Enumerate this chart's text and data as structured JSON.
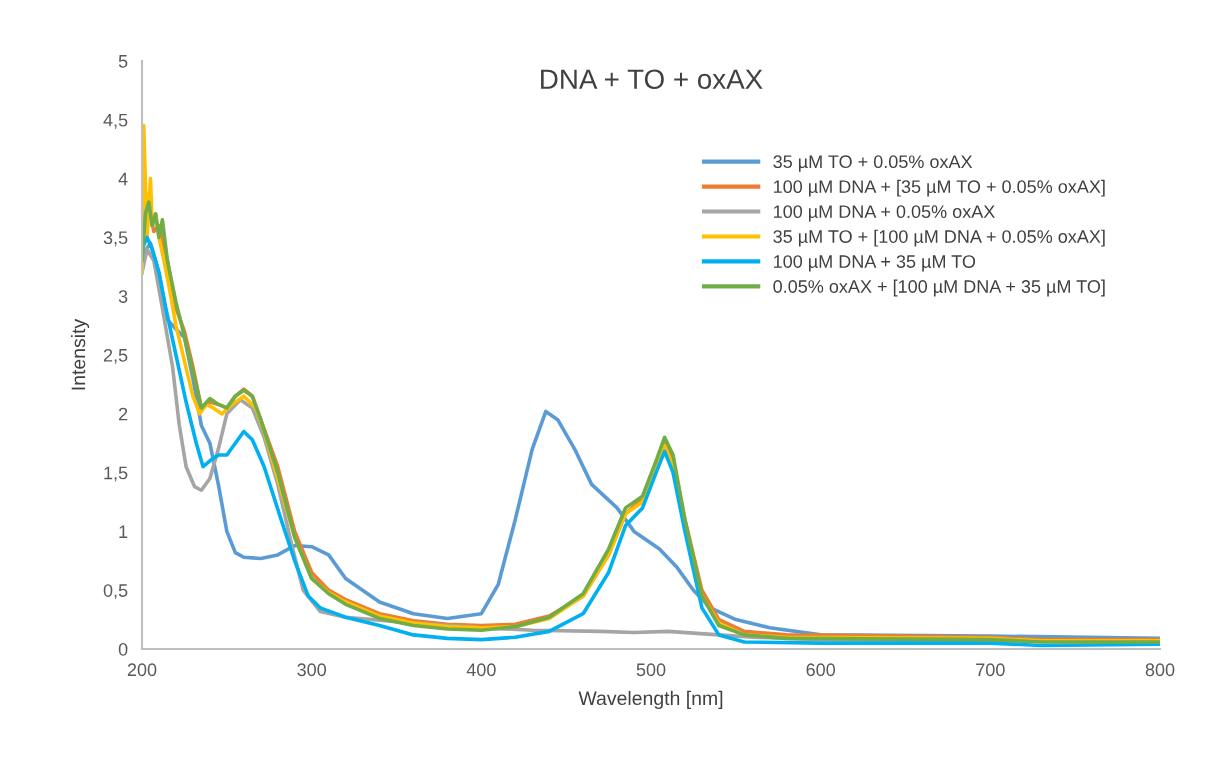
{
  "chart_data": {
    "type": "line",
    "title": "DNA + TO + oxAX",
    "xlabel": "Wavelength [nm]",
    "ylabel": "Intensity",
    "xlim": [
      200,
      800
    ],
    "xticks": [
      200,
      300,
      400,
      500,
      600,
      700,
      800
    ],
    "ylim": [
      0,
      5
    ],
    "yticks": [
      0,
      {
        "value": 0.5,
        "label": "0,5"
      },
      1,
      {
        "value": 1.5,
        "label": "1,5"
      },
      2,
      {
        "value": 2.5,
        "label": "2,5"
      },
      3,
      {
        "value": 3.5,
        "label": "3,5"
      },
      4,
      {
        "value": 4.5,
        "label": "4,5"
      },
      5
    ],
    "grid": false,
    "legend": "right",
    "marker": "none",
    "line_style": "solid",
    "series": [
      {
        "name": "35 µM TO + 0.05% oxAX",
        "color": "#5b9bd5",
        "x": [
          200,
          205,
          210,
          215,
          220,
          225,
          230,
          235,
          240,
          245,
          250,
          255,
          260,
          270,
          280,
          290,
          300,
          310,
          320,
          340,
          360,
          380,
          400,
          410,
          420,
          430,
          438,
          445,
          455,
          465,
          480,
          490,
          505,
          515,
          525,
          535,
          550,
          570,
          600,
          700,
          800
        ],
        "values": [
          3.35,
          3.45,
          3.2,
          2.8,
          2.72,
          2.65,
          2.3,
          1.9,
          1.75,
          1.4,
          1.0,
          0.82,
          0.78,
          0.77,
          0.8,
          0.88,
          0.87,
          0.8,
          0.6,
          0.4,
          0.3,
          0.26,
          0.3,
          0.55,
          1.1,
          1.7,
          2.02,
          1.95,
          1.7,
          1.4,
          1.2,
          1.0,
          0.85,
          0.7,
          0.5,
          0.35,
          0.25,
          0.18,
          0.12,
          0.11,
          0.09
        ]
      },
      {
        "name": "100 µM DNA + [35 µM TO + 0.05% oxAX]",
        "color": "#ed7d31",
        "x": [
          200,
          204,
          207,
          210,
          215,
          220,
          225,
          230,
          235,
          240,
          245,
          250,
          255,
          260,
          265,
          270,
          280,
          290,
          300,
          310,
          320,
          340,
          360,
          380,
          400,
          420,
          440,
          460,
          475,
          485,
          495,
          503,
          508,
          513,
          520,
          530,
          540,
          555,
          580,
          650,
          700,
          730,
          800
        ],
        "values": [
          3.6,
          3.75,
          3.55,
          3.6,
          3.3,
          2.9,
          2.7,
          2.4,
          2.05,
          2.1,
          2.08,
          2.05,
          2.15,
          2.21,
          2.15,
          1.95,
          1.55,
          1.0,
          0.65,
          0.5,
          0.42,
          0.3,
          0.24,
          0.21,
          0.2,
          0.21,
          0.28,
          0.45,
          0.8,
          1.15,
          1.28,
          1.55,
          1.75,
          1.6,
          1.1,
          0.5,
          0.25,
          0.15,
          0.12,
          0.11,
          0.1,
          0.08,
          0.08
        ]
      },
      {
        "name": "100 µM DNA + 0.05% oxAX",
        "color": "#a5a5a5",
        "x": [
          200,
          203,
          207,
          212,
          218,
          222,
          226,
          231,
          235,
          240,
          245,
          250,
          258,
          265,
          272,
          280,
          288,
          295,
          305,
          320,
          360,
          400,
          430,
          470,
          490,
          510,
          540,
          560,
          600,
          700,
          800
        ],
        "values": [
          3.2,
          3.4,
          3.3,
          2.9,
          2.4,
          1.9,
          1.55,
          1.38,
          1.35,
          1.45,
          1.7,
          2.0,
          2.12,
          2.05,
          1.8,
          1.4,
          0.9,
          0.5,
          0.32,
          0.27,
          0.22,
          0.18,
          0.16,
          0.15,
          0.14,
          0.15,
          0.12,
          0.1,
          0.08,
          0.07,
          0.06
        ]
      },
      {
        "name": "35 µM TO + [100 µM DNA + 0.05% oxAX]",
        "color": "#ffc000",
        "x": [
          200,
          201,
          203,
          205,
          206,
          208,
          210,
          213,
          217,
          220,
          225,
          230,
          234,
          238,
          242,
          247,
          253,
          260,
          267,
          272,
          280,
          290,
          300,
          310,
          320,
          340,
          360,
          380,
          400,
          420,
          440,
          460,
          475,
          485,
          495,
          503,
          508,
          513,
          520,
          530,
          540,
          555,
          580,
          700,
          730,
          800
        ],
        "values": [
          3.2,
          4.45,
          3.5,
          4.0,
          3.6,
          3.7,
          3.5,
          3.3,
          3.0,
          2.75,
          2.45,
          2.15,
          2.0,
          2.08,
          2.05,
          2.0,
          2.08,
          2.15,
          2.05,
          1.85,
          1.45,
          0.95,
          0.6,
          0.48,
          0.4,
          0.28,
          0.22,
          0.19,
          0.18,
          0.19,
          0.26,
          0.45,
          0.8,
          1.15,
          1.25,
          1.55,
          1.73,
          1.55,
          1.05,
          0.45,
          0.22,
          0.12,
          0.1,
          0.09,
          0.07,
          0.07
        ]
      },
      {
        "name": "100 µM DNA + 35 µM TO",
        "color": "#00b0f0",
        "x": [
          200,
          203,
          206,
          210,
          214,
          220,
          226,
          232,
          236,
          240,
          245,
          250,
          255,
          260,
          265,
          272,
          282,
          290,
          298,
          305,
          320,
          340,
          360,
          380,
          400,
          420,
          440,
          460,
          475,
          485,
          495,
          503,
          508,
          513,
          520,
          530,
          540,
          555,
          600,
          700,
          730,
          800
        ],
        "values": [
          3.4,
          3.5,
          3.4,
          3.2,
          2.9,
          2.5,
          2.1,
          1.75,
          1.55,
          1.6,
          1.65,
          1.65,
          1.75,
          1.85,
          1.78,
          1.55,
          1.1,
          0.75,
          0.45,
          0.35,
          0.27,
          0.2,
          0.12,
          0.09,
          0.08,
          0.1,
          0.15,
          0.3,
          0.65,
          1.05,
          1.2,
          1.5,
          1.68,
          1.5,
          1.0,
          0.35,
          0.12,
          0.06,
          0.05,
          0.05,
          0.03,
          0.04
        ]
      },
      {
        "name": "0.05% oxAX + [100 µM DNA + 35 µM TO]",
        "color": "#70ad47",
        "x": [
          200,
          202,
          204,
          206,
          208,
          210,
          212,
          215,
          220,
          226,
          231,
          235,
          240,
          245,
          250,
          255,
          260,
          265,
          270,
          280,
          290,
          300,
          310,
          320,
          340,
          360,
          380,
          400,
          420,
          440,
          460,
          475,
          485,
          495,
          503,
          508,
          513,
          520,
          530,
          540,
          555,
          580,
          700,
          730,
          800
        ],
        "values": [
          3.3,
          3.7,
          3.8,
          3.6,
          3.7,
          3.5,
          3.65,
          3.3,
          2.95,
          2.6,
          2.3,
          2.05,
          2.13,
          2.08,
          2.05,
          2.15,
          2.2,
          2.15,
          1.95,
          1.5,
          0.95,
          0.6,
          0.47,
          0.38,
          0.26,
          0.2,
          0.17,
          0.16,
          0.19,
          0.27,
          0.47,
          0.85,
          1.2,
          1.3,
          1.6,
          1.8,
          1.65,
          1.1,
          0.45,
          0.2,
          0.12,
          0.09,
          0.08,
          0.06,
          0.06
        ]
      }
    ]
  }
}
